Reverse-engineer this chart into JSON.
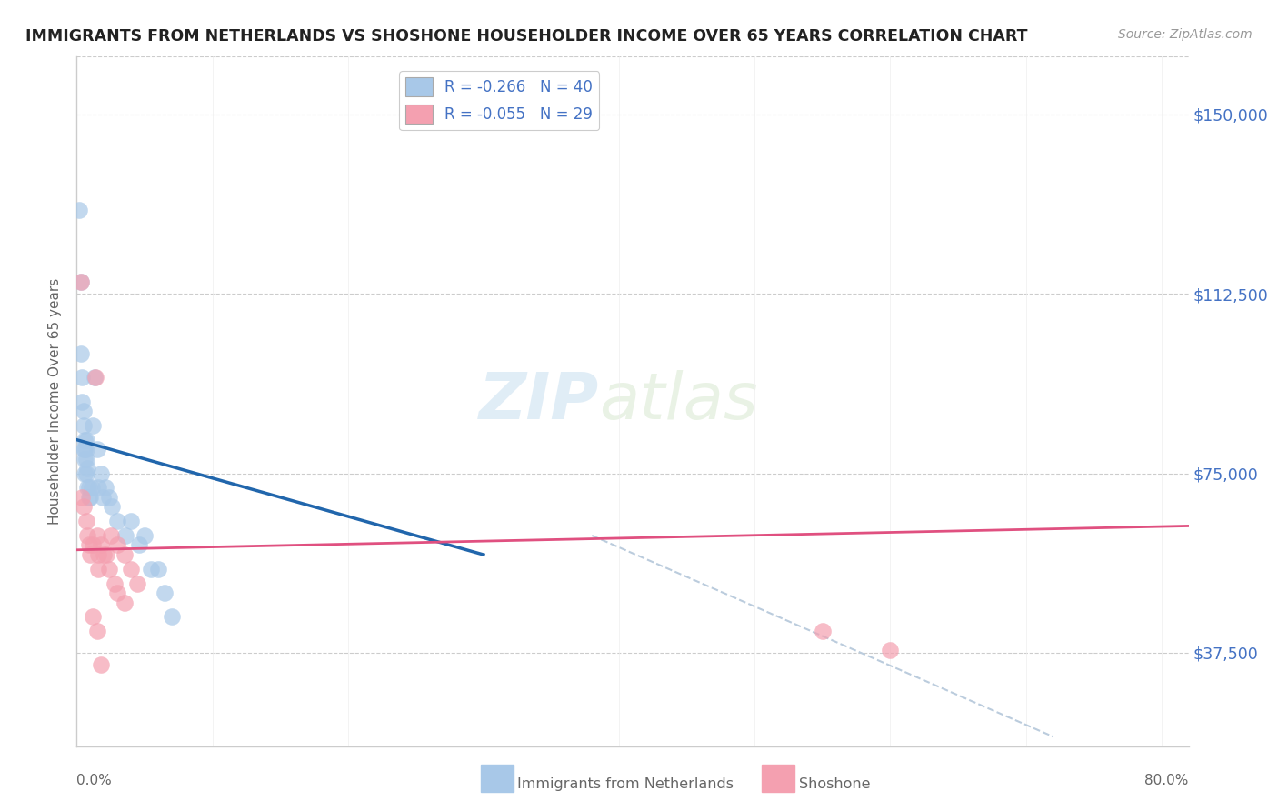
{
  "title": "IMMIGRANTS FROM NETHERLANDS VS SHOSHONE HOUSEHOLDER INCOME OVER 65 YEARS CORRELATION CHART",
  "source": "Source: ZipAtlas.com",
  "ylabel": "Householder Income Over 65 years",
  "ytick_labels": [
    "$37,500",
    "$75,000",
    "$112,500",
    "$150,000"
  ],
  "ytick_values": [
    37500,
    75000,
    112500,
    150000
  ],
  "ylim": [
    18000,
    162000
  ],
  "xlim": [
    0.0,
    0.82
  ],
  "legend1_label": "R = -0.266   N = 40",
  "legend2_label": "R = -0.055   N = 29",
  "footer_label1": "Immigrants from Netherlands",
  "footer_label2": "Shoshone",
  "blue_color": "#a8c8e8",
  "pink_color": "#f4a0b0",
  "blue_line_color": "#2166ac",
  "pink_line_color": "#e05080",
  "dashed_line_color": "#bbccdd",
  "title_color": "#222222",
  "axis_label_color": "#666666",
  "tick_color_right": "#4472c4",
  "background_color": "#ffffff",
  "watermark_zip": "ZIP",
  "watermark_atlas": "atlas",
  "blue_scatter_x": [
    0.002,
    0.003,
    0.003,
    0.004,
    0.004,
    0.005,
    0.005,
    0.005,
    0.006,
    0.006,
    0.006,
    0.006,
    0.007,
    0.007,
    0.007,
    0.007,
    0.008,
    0.008,
    0.009,
    0.009,
    0.01,
    0.011,
    0.012,
    0.013,
    0.015,
    0.016,
    0.018,
    0.019,
    0.021,
    0.024,
    0.026,
    0.03,
    0.036,
    0.04,
    0.046,
    0.05,
    0.055,
    0.06,
    0.065,
    0.07
  ],
  "blue_scatter_y": [
    130000,
    115000,
    100000,
    95000,
    90000,
    88000,
    85000,
    80000,
    82000,
    80000,
    78000,
    75000,
    82000,
    80000,
    78000,
    75000,
    76000,
    72000,
    72000,
    70000,
    70000,
    72000,
    85000,
    95000,
    80000,
    72000,
    75000,
    70000,
    72000,
    70000,
    68000,
    65000,
    62000,
    65000,
    60000,
    62000,
    55000,
    55000,
    50000,
    45000
  ],
  "pink_scatter_x": [
    0.003,
    0.004,
    0.005,
    0.007,
    0.008,
    0.009,
    0.01,
    0.012,
    0.014,
    0.015,
    0.016,
    0.018,
    0.022,
    0.025,
    0.03,
    0.035,
    0.04,
    0.045,
    0.016,
    0.02,
    0.024,
    0.028,
    0.03,
    0.035,
    0.012,
    0.015,
    0.018,
    0.55,
    0.6
  ],
  "pink_scatter_y": [
    115000,
    70000,
    68000,
    65000,
    62000,
    60000,
    58000,
    60000,
    95000,
    62000,
    58000,
    60000,
    58000,
    62000,
    60000,
    58000,
    55000,
    52000,
    55000,
    58000,
    55000,
    52000,
    50000,
    48000,
    45000,
    42000,
    35000,
    42000,
    38000
  ],
  "blue_line_x": [
    0.0,
    0.3
  ],
  "blue_line_y": [
    82000,
    58000
  ],
  "pink_line_x": [
    0.0,
    0.82
  ],
  "pink_line_y": [
    59000,
    64000
  ],
  "dashed_line_x": [
    0.38,
    0.72
  ],
  "dashed_line_y": [
    62000,
    20000
  ]
}
